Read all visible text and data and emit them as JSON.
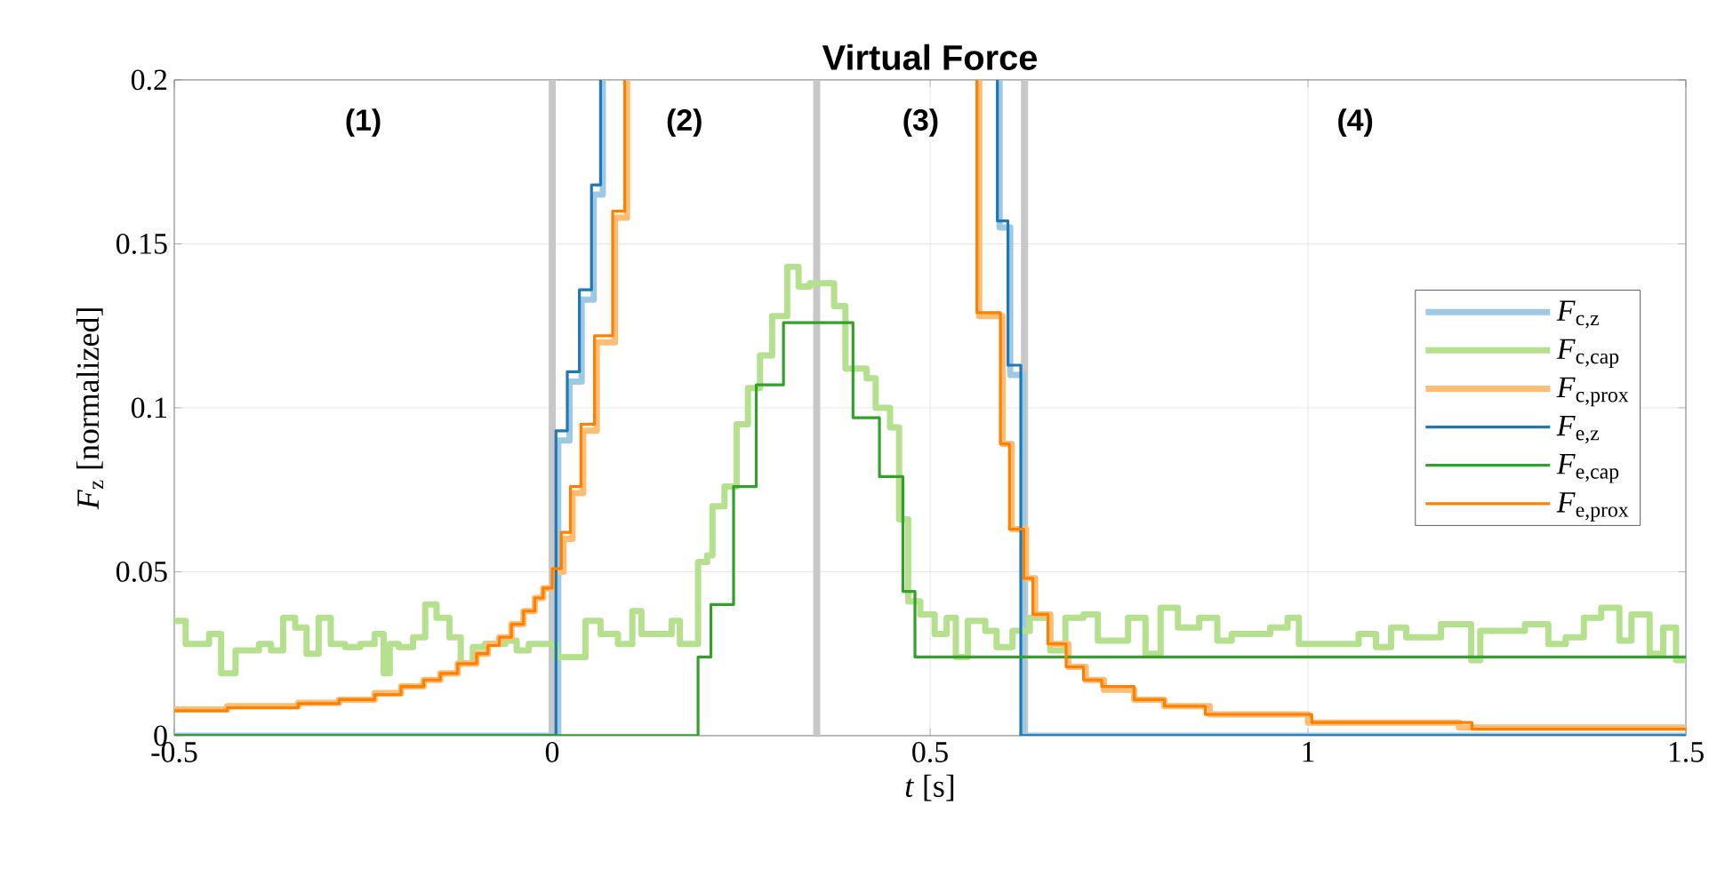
{
  "chart_data": {
    "type": "step",
    "title": "Virtual Force",
    "xlabel": "*t* [s]",
    "ylabel": "*F*$_{z}$ [normalized]",
    "xlim": [
      -0.5,
      1.5
    ],
    "ylim": [
      0,
      0.2
    ],
    "xticks": [
      -0.5,
      0,
      0.5,
      1,
      1.5
    ],
    "yticks": [
      0,
      0.05,
      0.1,
      0.15,
      0.2
    ],
    "grid": true,
    "legend": "right",
    "ref_lines": [
      {
        "axis": "x",
        "value": 0,
        "color": "#c8c8c8"
      },
      {
        "axis": "x",
        "value": 0.35,
        "color": "#c8c8c8"
      },
      {
        "axis": "x",
        "value": 0.625,
        "color": "#c8c8c8"
      }
    ],
    "annotations": [
      "(1)",
      "(2)",
      "(3)",
      "(4)"
    ],
    "series": [
      {
        "name": "*F*$_{c,z}$",
        "color": "#9dc9e3",
        "x": [
          -0.5,
          0.008,
          0.023,
          0.039,
          0.055,
          0.067,
          0.3,
          0.592,
          0.592,
          0.606,
          0.623,
          1.5
        ],
        "values": [
          0,
          0.09,
          0.108,
          0.133,
          0.165,
          0.2,
          null,
          0.2,
          0.155,
          0.11,
          0,
          0
        ]
      },
      {
        "name": "*F*$_{c,cap}$",
        "color": "#b5e08e",
        "x": [
          -0.5,
          -0.485,
          -0.454,
          -0.438,
          -0.419,
          -0.388,
          -0.372,
          -0.356,
          -0.34,
          -0.325,
          -0.309,
          -0.293,
          -0.274,
          -0.254,
          -0.235,
          -0.223,
          -0.215,
          -0.203,
          -0.184,
          -0.168,
          -0.153,
          -0.136,
          -0.121,
          -0.105,
          -0.089,
          -0.062,
          -0.047,
          -0.031,
          0.005,
          0.044,
          0.064,
          0.087,
          0.106,
          0.118,
          0.158,
          0.169,
          0.193,
          0.205,
          0.212,
          0.228,
          0.244,
          0.259,
          0.275,
          0.291,
          0.311,
          0.326,
          0.341,
          0.373,
          0.388,
          0.416,
          0.428,
          0.447,
          0.459,
          0.471,
          0.487,
          0.506,
          0.522,
          0.534,
          0.55,
          0.573,
          0.588,
          0.609,
          0.632,
          0.659,
          0.679,
          0.703,
          0.722,
          0.762,
          0.785,
          0.805,
          0.828,
          0.856,
          0.88,
          0.899,
          0.95,
          0.973,
          0.988,
          1.02,
          1.067,
          1.09,
          1.11,
          1.13,
          1.176,
          1.216,
          1.228,
          1.287,
          1.318,
          1.341,
          1.365,
          1.388,
          1.412,
          1.428,
          1.452,
          1.47,
          1.487,
          1.5
        ],
        "values": [
          0.035,
          0.028,
          0.031,
          0.019,
          0.026,
          0.028,
          0.026,
          0.036,
          0.033,
          0.025,
          0.036,
          0.028,
          0.027,
          0.028,
          0.031,
          0.019,
          0.028,
          0.027,
          0.03,
          0.04,
          0.036,
          0.03,
          0.022,
          0.027,
          0.028,
          0.029,
          0.026,
          0.028,
          0.024,
          0.035,
          0.031,
          0.028,
          0.038,
          0.031,
          0.035,
          0.028,
          0.053,
          0.055,
          0.07,
          0.076,
          0.095,
          0.106,
          0.116,
          0.128,
          0.143,
          0.137,
          0.138,
          0.131,
          0.112,
          0.109,
          0.1,
          0.094,
          0.066,
          0.041,
          0.037,
          0.031,
          0.036,
          0.024,
          0.035,
          0.032,
          0.027,
          0.032,
          0.036,
          0.026,
          0.036,
          0.037,
          0.029,
          0.036,
          0.025,
          0.039,
          0.033,
          0.036,
          0.029,
          0.031,
          0.033,
          0.036,
          0.028,
          0.028,
          0.031,
          0.027,
          0.033,
          0.03,
          0.034,
          0.023,
          0.032,
          0.034,
          0.028,
          0.03,
          0.036,
          0.039,
          0.029,
          0.037,
          0.025,
          0.033,
          0.023,
          0.023
        ]
      },
      {
        "name": "*F*$_{c,prox}$",
        "color": "#fdbd74",
        "x": [
          -0.5,
          -0.43,
          -0.336,
          -0.282,
          -0.235,
          -0.2,
          -0.17,
          -0.148,
          -0.125,
          -0.1,
          -0.085,
          -0.07,
          -0.054,
          -0.038,
          -0.023,
          -0.012,
          0.002,
          0.015,
          0.027,
          0.041,
          0.059,
          0.083,
          0.099,
          0.3,
          0.565,
          0.565,
          0.596,
          0.608,
          0.627,
          0.639,
          0.659,
          0.683,
          0.706,
          0.73,
          0.77,
          0.81,
          0.87,
          1.0,
          1.2,
          1.5
        ],
        "values": [
          0.008,
          0.009,
          0.01,
          0.011,
          0.013,
          0.015,
          0.017,
          0.019,
          0.022,
          0.025,
          0.028,
          0.03,
          0.034,
          0.038,
          0.042,
          0.045,
          0.05,
          0.06,
          0.074,
          0.093,
          0.12,
          0.158,
          0.2,
          null,
          0.2,
          0.128,
          0.089,
          0.063,
          0.048,
          0.037,
          0.028,
          0.021,
          0.017,
          0.014,
          0.011,
          0.009,
          0.0065,
          0.004,
          0.0025,
          0.002
        ]
      },
      {
        "name": "*F*$_{e,z}$",
        "color": "#1f78b4",
        "x": [
          -0.5,
          0.005,
          0.02,
          0.036,
          0.052,
          0.064,
          0.3,
          0.589,
          0.589,
          0.603,
          0.62,
          1.5
        ],
        "values": [
          0,
          0.093,
          0.111,
          0.136,
          0.168,
          0.2,
          null,
          0.2,
          0.157,
          0.113,
          0,
          0
        ]
      },
      {
        "name": "*F*$_{e,cap}$",
        "color": "#33a02c",
        "x": [
          -0.5,
          0.193,
          0.21,
          0.24,
          0.27,
          0.306,
          0.398,
          0.433,
          0.464,
          0.48,
          1.5
        ],
        "values": [
          0,
          0.024,
          0.04,
          0.076,
          0.107,
          0.126,
          0.097,
          0.079,
          0.044,
          0.024,
          0.024
        ]
      },
      {
        "name": "*F*$_{e,prox}$",
        "color": "#ff7f00",
        "x": [
          -0.5,
          -0.43,
          -0.336,
          -0.282,
          -0.235,
          -0.2,
          -0.17,
          -0.148,
          -0.125,
          -0.1,
          -0.085,
          -0.07,
          -0.054,
          -0.038,
          -0.023,
          -0.012,
          0.0,
          0.012,
          0.024,
          0.038,
          0.056,
          0.08,
          0.096,
          0.3,
          0.562,
          0.562,
          0.593,
          0.605,
          0.624,
          0.636,
          0.656,
          0.68,
          0.703,
          0.727,
          0.77,
          0.81,
          0.864,
          1.005,
          1.217,
          1.5
        ],
        "values": [
          0.0076,
          0.0085,
          0.0098,
          0.011,
          0.0125,
          0.015,
          0.017,
          0.019,
          0.022,
          0.025,
          0.0275,
          0.03,
          0.034,
          0.038,
          0.042,
          0.045,
          0.051,
          0.062,
          0.076,
          0.095,
          0.122,
          0.16,
          0.2,
          null,
          0.2,
          0.129,
          0.089,
          0.063,
          0.048,
          0.037,
          0.028,
          0.021,
          0.017,
          0.015,
          0.011,
          0.009,
          0.0065,
          0.004,
          0.002,
          0.002
        ]
      }
    ]
  }
}
